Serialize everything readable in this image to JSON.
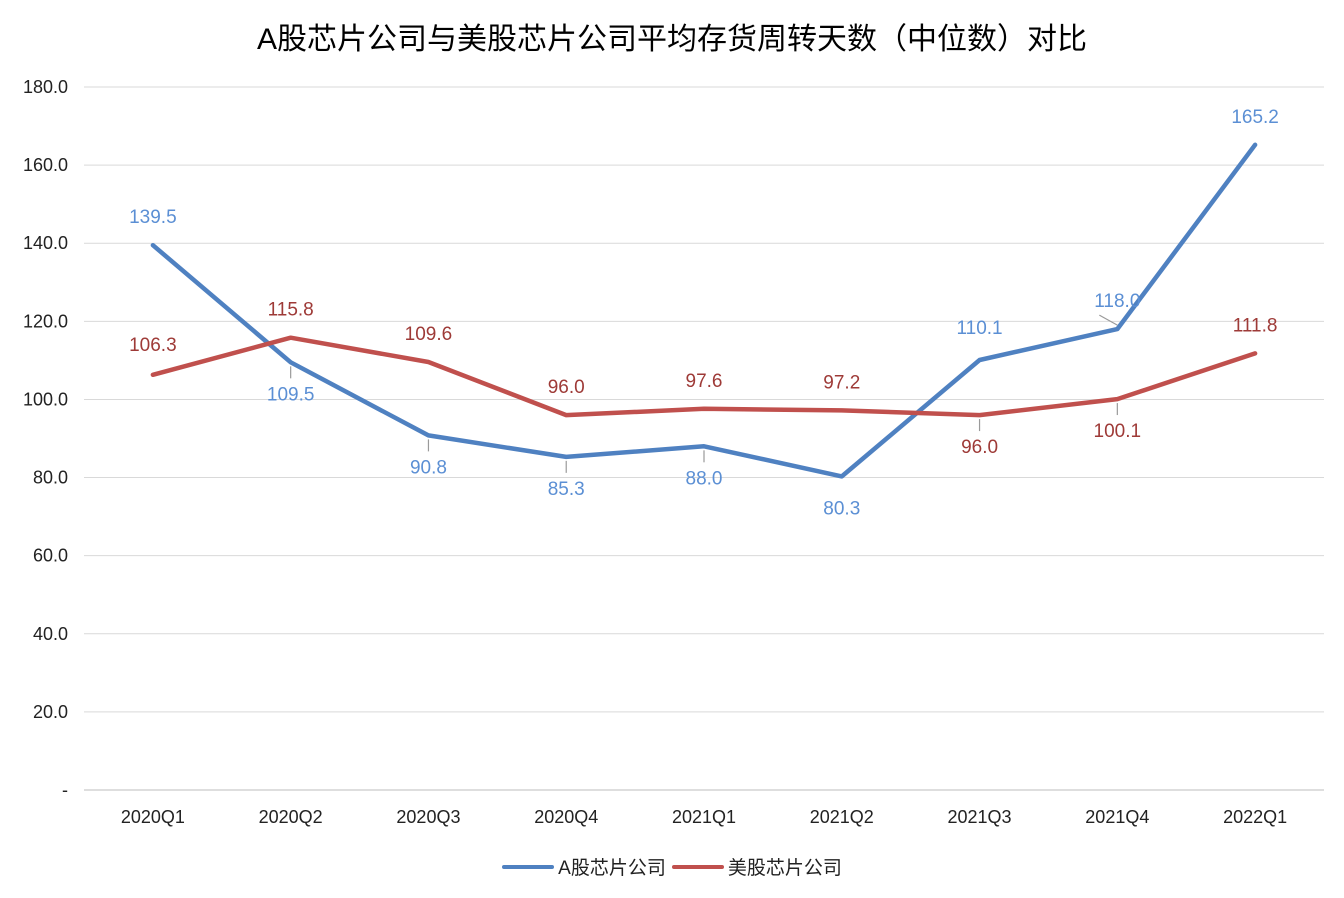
{
  "chart_data": {
    "type": "line",
    "title": "A股芯片公司与美股芯片公司平均存货周转天数（中位数）对比",
    "categories": [
      "2020Q1",
      "2020Q2",
      "2020Q3",
      "2020Q4",
      "2021Q1",
      "2021Q2",
      "2021Q3",
      "2021Q4",
      "2022Q1"
    ],
    "y_ticks": [
      "-",
      "20.0",
      "40.0",
      "60.0",
      "80.0",
      "100.0",
      "120.0",
      "140.0",
      "160.0",
      "180.0"
    ],
    "ylim": [
      0,
      180
    ],
    "grid": true,
    "legend_position": "bottom",
    "series": [
      {
        "name": "A股芯片公司",
        "color": "#4f81c1",
        "label_color": "#5b8fd4",
        "values": [
          139.5,
          109.5,
          90.8,
          85.3,
          88.0,
          80.3,
          110.1,
          118.0,
          165.2
        ],
        "labels": [
          "139.5",
          "109.5",
          "90.8",
          "85.3",
          "88.0",
          "80.3",
          "110.1",
          "118.0",
          "165.2"
        ]
      },
      {
        "name": "美股芯片公司",
        "color": "#c0504d",
        "label_color": "#9e3a37",
        "values": [
          106.3,
          115.8,
          109.6,
          96.0,
          97.6,
          97.2,
          96.0,
          100.1,
          111.8
        ],
        "labels": [
          "106.3",
          "115.8",
          "109.6",
          "96.0",
          "97.6",
          "97.2",
          "96.0",
          "100.1",
          "111.8"
        ]
      }
    ]
  }
}
